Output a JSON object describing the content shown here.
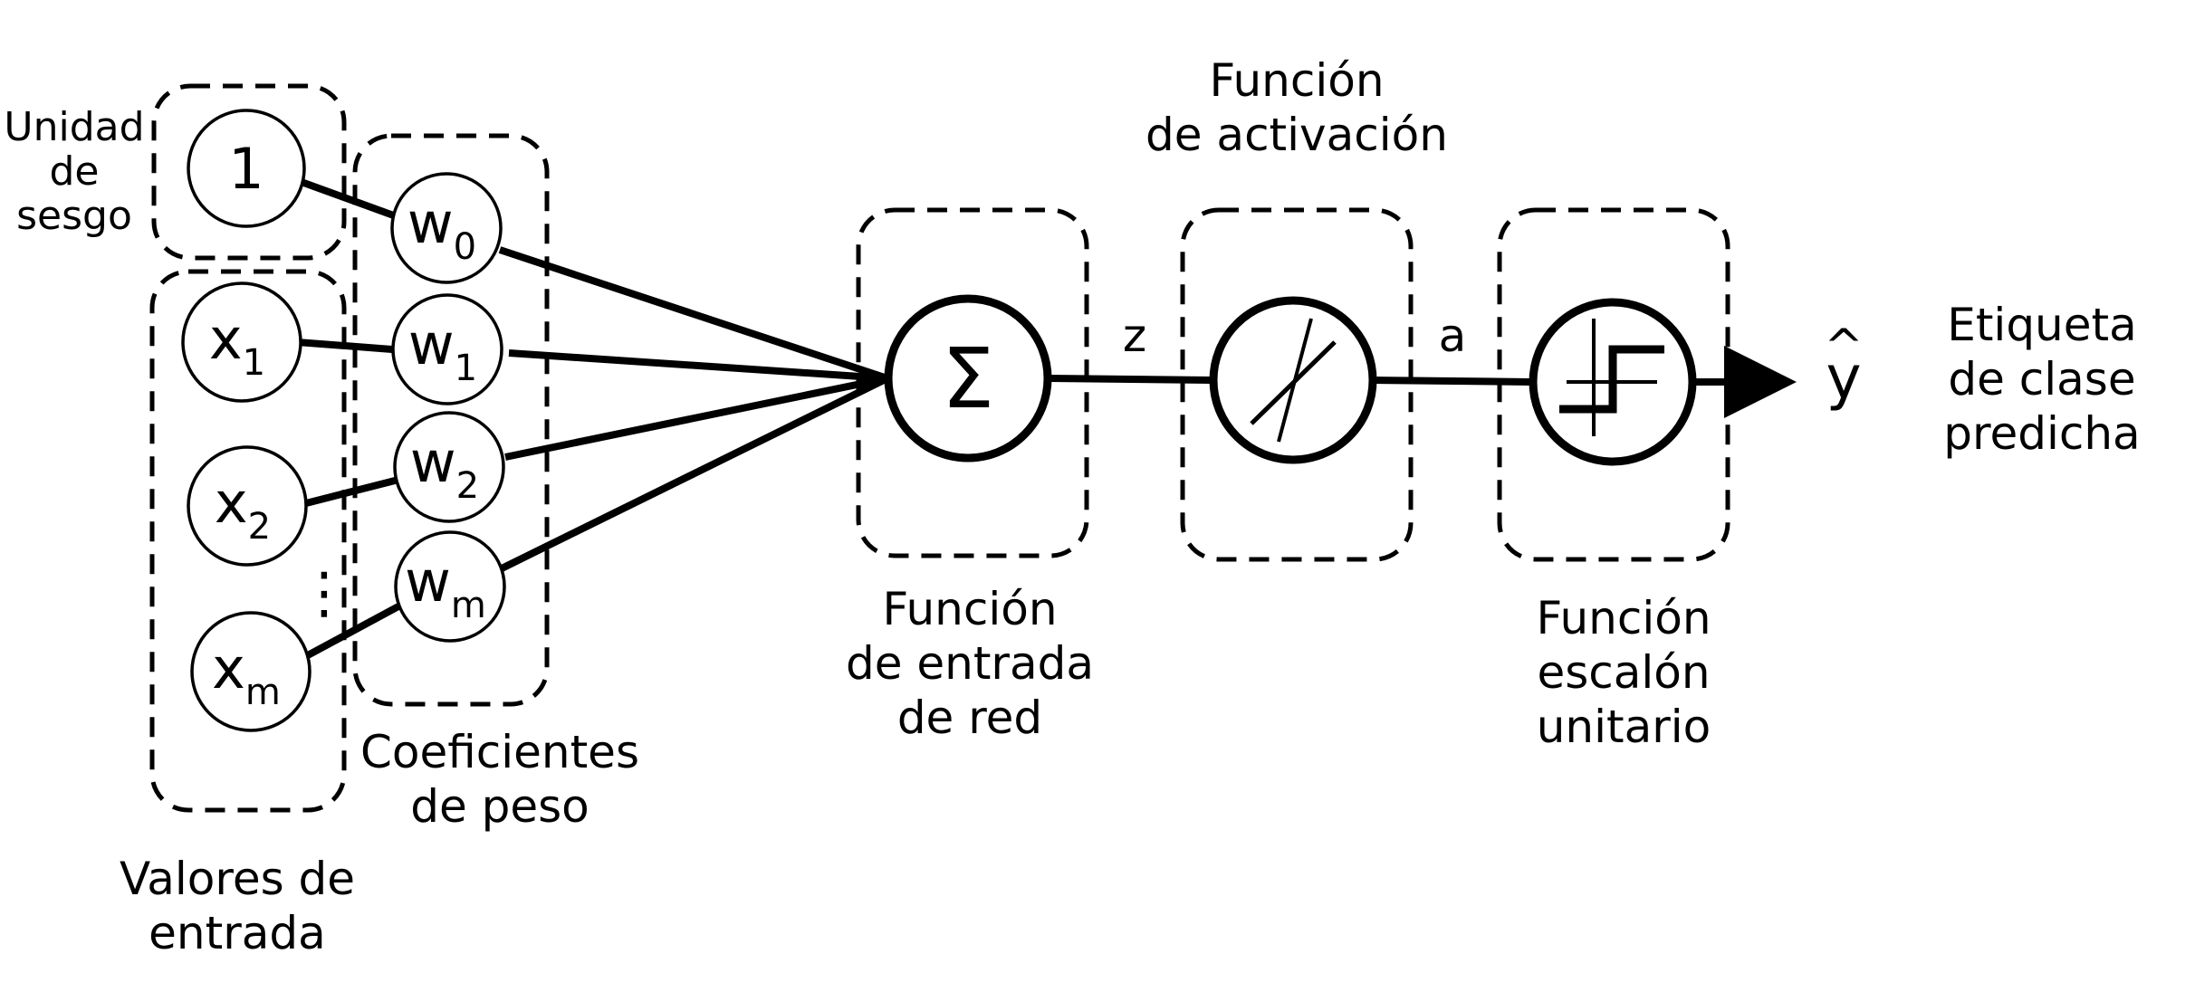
{
  "labels": {
    "bias_unit": [
      "Unidad",
      "de",
      "sesgo"
    ],
    "input_values": [
      "Valores de",
      "entrada"
    ],
    "weights": [
      "Coeficientes",
      "de peso"
    ],
    "net_input": [
      "Función",
      "de entrada",
      "de red"
    ],
    "activation": [
      "Función",
      "de activación"
    ],
    "step": [
      "Función",
      "escalón",
      "unitario"
    ],
    "predicted": [
      "Etiqueta",
      "de clase",
      "predicha"
    ]
  },
  "nodes": {
    "bias": "1",
    "x1": {
      "base": "x",
      "sub": "1"
    },
    "x2": {
      "base": "x",
      "sub": "2"
    },
    "xm": {
      "base": "x",
      "sub": "m"
    },
    "w0": {
      "base": "w",
      "sub": "0"
    },
    "w1": {
      "base": "w",
      "sub": "1"
    },
    "w2": {
      "base": "w",
      "sub": "2"
    },
    "wm": {
      "base": "w",
      "sub": "m"
    },
    "sum": "Σ",
    "ellipsis": "⋮",
    "output": "y",
    "output_hat": "^"
  },
  "edge_labels": {
    "z": "z",
    "a": "a"
  }
}
